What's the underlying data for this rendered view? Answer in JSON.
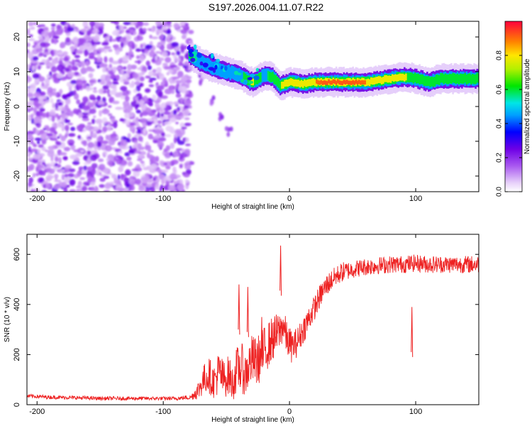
{
  "title": "S197.2026.004.11.07.R22",
  "chart_data": [
    {
      "type": "heatmap",
      "name": "spectrogram",
      "xlabel": "Height of straight line (km)",
      "ylabel": "Frequency (Hz)",
      "xlim": [
        -208,
        150
      ],
      "ylim": [
        -24.5,
        24.5
      ],
      "xticks": [
        -200,
        -100,
        0,
        100
      ],
      "yticks": [
        -20,
        -10,
        0,
        10,
        20
      ],
      "colorbar": {
        "label": "Normalized spectral amplitude",
        "range": [
          0,
          1
        ],
        "ticks": [
          0.0,
          0.2,
          0.4,
          0.6,
          0.8
        ]
      },
      "noise_region": {
        "x_min": -208,
        "x_max": -78,
        "amplitude": 0.3
      },
      "ridge": [
        {
          "x": -80,
          "freq": 15.0,
          "amp": 0.65
        },
        {
          "x": -70,
          "freq": 12.5,
          "amp": 0.5
        },
        {
          "x": -60,
          "freq": 11.0,
          "amp": 0.45
        },
        {
          "x": -50,
          "freq": 10.0,
          "amp": 0.45
        },
        {
          "x": -40,
          "freq": 9.0,
          "amp": 0.5
        },
        {
          "x": -30,
          "freq": 7.0,
          "amp": 0.8
        },
        {
          "x": -20,
          "freq": 9.0,
          "amp": 0.5
        },
        {
          "x": -14,
          "freq": 8.5,
          "amp": 0.7
        },
        {
          "x": -8,
          "freq": 6.0,
          "amp": 0.75
        },
        {
          "x": 0,
          "freq": 7.0,
          "amp": 0.85
        },
        {
          "x": 10,
          "freq": 6.5,
          "amp": 0.85
        },
        {
          "x": 20,
          "freq": 7.0,
          "amp": 0.9
        },
        {
          "x": 40,
          "freq": 7.0,
          "amp": 0.95
        },
        {
          "x": 60,
          "freq": 7.0,
          "amp": 0.9
        },
        {
          "x": 80,
          "freq": 8.0,
          "amp": 0.85
        },
        {
          "x": 90,
          "freq": 8.5,
          "amp": 0.8
        },
        {
          "x": 100,
          "freq": 8.0,
          "amp": 0.65
        },
        {
          "x": 110,
          "freq": 7.0,
          "amp": 0.75
        },
        {
          "x": 120,
          "freq": 8.0,
          "amp": 0.7
        },
        {
          "x": 150,
          "freq": 8.0,
          "amp": 0.6
        }
      ],
      "branch": [
        {
          "x": -78,
          "freq": 14.0
        },
        {
          "x": -70,
          "freq": 8.0
        },
        {
          "x": -62,
          "freq": 2.0
        },
        {
          "x": -55,
          "freq": -3.0
        },
        {
          "x": -48,
          "freq": -7.0
        }
      ]
    },
    {
      "type": "line",
      "name": "snr",
      "xlabel": "Height of straight line (km)",
      "ylabel": "SNR (10 * v/v)",
      "xlim": [
        -208,
        150
      ],
      "ylim": [
        0,
        680
      ],
      "xticks": [
        -200,
        -100,
        0,
        100
      ],
      "yticks": [
        0,
        200,
        400,
        600
      ],
      "color": "#ee2222",
      "series": [
        {
          "name": "SNR",
          "x": [
            -208,
            -190,
            -170,
            -150,
            -130,
            -110,
            -90,
            -78,
            -72,
            -68,
            -64,
            -60,
            -56,
            -52,
            -48,
            -45,
            -42,
            -38,
            -35,
            -30,
            -26,
            -22,
            -18,
            -14,
            -10,
            -7,
            -5,
            -2,
            2,
            6,
            10,
            14,
            18,
            22,
            26,
            30,
            36,
            42,
            50,
            60,
            70,
            80,
            90,
            100,
            110,
            120,
            130,
            140,
            150
          ],
          "values": [
            35,
            30,
            28,
            25,
            25,
            25,
            25,
            30,
            60,
            100,
            120,
            90,
            130,
            100,
            120,
            80,
            140,
            150,
            120,
            180,
            170,
            200,
            230,
            260,
            280,
            300,
            320,
            260,
            230,
            250,
            290,
            330,
            370,
            410,
            450,
            480,
            510,
            530,
            540,
            550,
            555,
            560,
            560,
            565,
            560,
            560,
            560,
            560,
            560
          ],
          "spread": [
            15,
            15,
            15,
            15,
            15,
            15,
            15,
            20,
            80,
            120,
            150,
            130,
            180,
            150,
            160,
            140,
            180,
            200,
            180,
            200,
            200,
            200,
            190,
            180,
            170,
            150,
            140,
            140,
            130,
            120,
            110,
            110,
            100,
            100,
            90,
            90,
            80,
            80,
            70,
            70,
            70,
            70,
            70,
            70,
            70,
            70,
            70,
            70,
            70
          ]
        }
      ],
      "spikes": [
        {
          "x": -40,
          "y": 480
        },
        {
          "x": -33,
          "y": 470
        },
        {
          "x": -7,
          "y": 635
        },
        {
          "x": -22,
          "y": 350
        },
        {
          "x": 97,
          "y": 390
        }
      ]
    }
  ]
}
